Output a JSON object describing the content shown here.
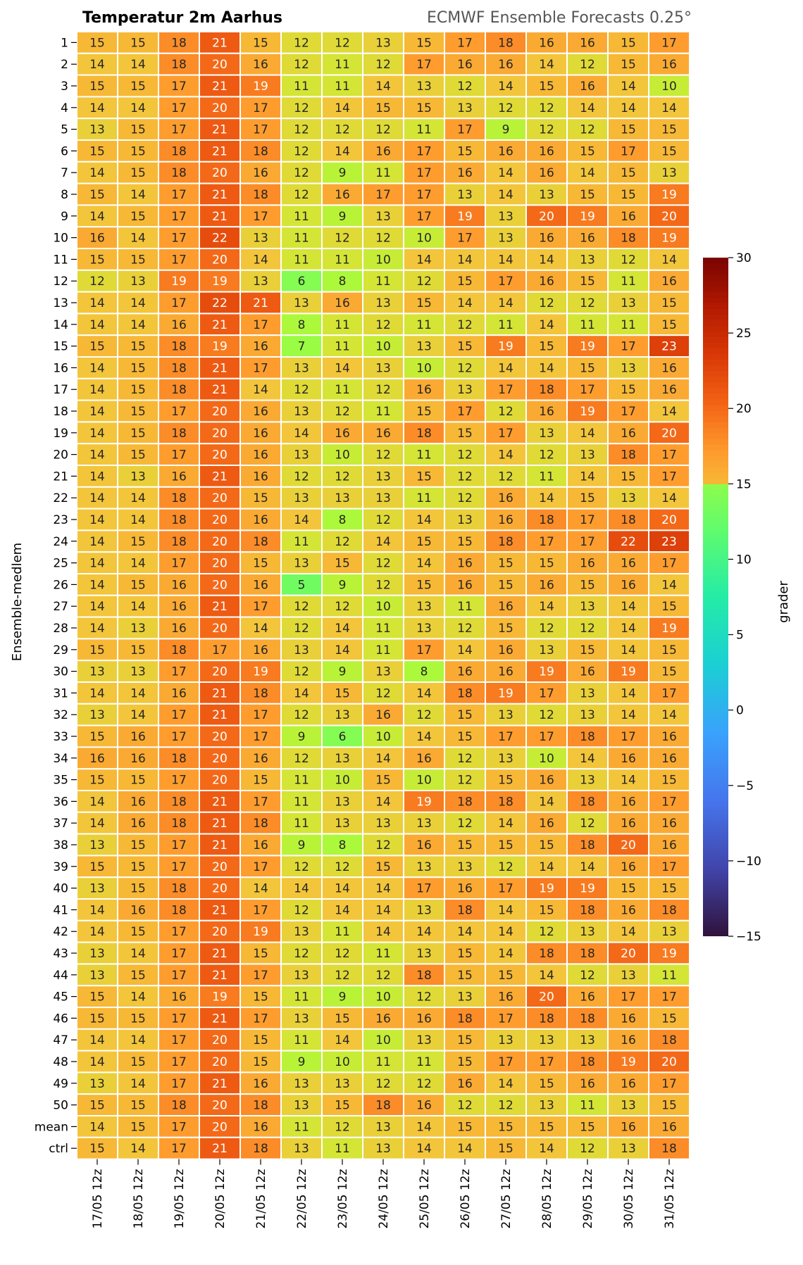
{
  "chart_data": {
    "type": "heatmap",
    "title": "Temperatur 2m Aarhus",
    "subtitle": "ECMWF Ensemble Forecasts 0.25°",
    "ylabel": "Ensemble-medlem",
    "colorbar_label": "grader",
    "vmin": -15,
    "vmax": 30,
    "colorbar_ticks": [
      30,
      25,
      20,
      15,
      10,
      5,
      0,
      -5,
      -10,
      -15
    ],
    "colorbar_tick_labels": [
      "30",
      "25",
      "20",
      "15",
      "10",
      "5",
      "0",
      "−5",
      "−10",
      "−15"
    ],
    "x_labels": [
      "17/05 12z",
      "18/05 12z",
      "19/05 12z",
      "20/05 12z",
      "21/05 12z",
      "22/05 12z",
      "23/05 12z",
      "24/05 12z",
      "25/05 12z",
      "26/05 12z",
      "27/05 12z",
      "28/05 12z",
      "29/05 12z",
      "30/05 12z",
      "31/05 12z"
    ],
    "y_labels": [
      "1",
      "2",
      "3",
      "4",
      "5",
      "6",
      "7",
      "8",
      "9",
      "10",
      "11",
      "12",
      "13",
      "14",
      "15",
      "16",
      "17",
      "18",
      "19",
      "20",
      "21",
      "22",
      "23",
      "24",
      "25",
      "26",
      "27",
      "28",
      "29",
      "30",
      "31",
      "32",
      "33",
      "34",
      "35",
      "36",
      "37",
      "38",
      "39",
      "40",
      "41",
      "42",
      "43",
      "44",
      "45",
      "46",
      "47",
      "48",
      "49",
      "50",
      "mean",
      "ctrl"
    ],
    "values": [
      [
        15,
        15,
        18,
        21,
        15,
        12,
        12,
        13,
        15,
        17,
        18,
        16,
        16,
        15,
        17
      ],
      [
        14,
        14,
        18,
        20,
        16,
        12,
        11,
        12,
        17,
        16,
        16,
        14,
        12,
        15,
        16
      ],
      [
        15,
        15,
        17,
        21,
        19,
        11,
        11,
        14,
        13,
        12,
        14,
        15,
        16,
        14,
        10
      ],
      [
        14,
        14,
        17,
        20,
        17,
        12,
        14,
        15,
        15,
        13,
        12,
        12,
        14,
        14,
        14
      ],
      [
        13,
        15,
        17,
        21,
        17,
        12,
        12,
        12,
        11,
        17,
        9,
        12,
        12,
        15,
        15
      ],
      [
        15,
        15,
        18,
        21,
        18,
        12,
        14,
        16,
        17,
        15,
        16,
        16,
        15,
        17,
        15
      ],
      [
        14,
        15,
        18,
        20,
        16,
        12,
        9,
        11,
        17,
        16,
        14,
        16,
        14,
        15,
        13
      ],
      [
        15,
        14,
        17,
        21,
        18,
        12,
        16,
        17,
        17,
        13,
        14,
        13,
        15,
        15,
        19
      ],
      [
        14,
        15,
        17,
        21,
        17,
        11,
        9,
        13,
        17,
        19,
        13,
        20,
        19,
        16,
        20
      ],
      [
        16,
        14,
        17,
        22,
        13,
        11,
        12,
        12,
        10,
        17,
        13,
        16,
        16,
        18,
        19
      ],
      [
        15,
        15,
        17,
        20,
        14,
        11,
        11,
        10,
        14,
        14,
        14,
        14,
        13,
        12,
        14
      ],
      [
        12,
        13,
        19,
        19,
        13,
        6,
        8,
        11,
        12,
        15,
        17,
        16,
        15,
        11,
        16
      ],
      [
        14,
        14,
        17,
        22,
        21,
        13,
        16,
        13,
        15,
        14,
        14,
        12,
        12,
        13,
        15
      ],
      [
        14,
        14,
        16,
        21,
        17,
        8,
        11,
        12,
        11,
        12,
        11,
        14,
        11,
        11,
        15
      ],
      [
        15,
        15,
        18,
        19,
        16,
        7,
        11,
        10,
        13,
        15,
        19,
        15,
        19,
        17,
        23
      ],
      [
        14,
        15,
        18,
        21,
        17,
        13,
        14,
        13,
        10,
        12,
        14,
        14,
        15,
        13,
        16
      ],
      [
        14,
        15,
        18,
        21,
        14,
        12,
        11,
        12,
        16,
        13,
        17,
        18,
        17,
        15,
        16
      ],
      [
        14,
        15,
        17,
        20,
        16,
        13,
        12,
        11,
        15,
        17,
        12,
        16,
        19,
        17,
        14
      ],
      [
        14,
        15,
        18,
        20,
        16,
        14,
        16,
        16,
        18,
        15,
        17,
        13,
        14,
        16,
        20
      ],
      [
        14,
        15,
        17,
        20,
        16,
        13,
        10,
        12,
        11,
        12,
        14,
        12,
        13,
        18,
        17
      ],
      [
        14,
        13,
        16,
        21,
        16,
        12,
        12,
        13,
        15,
        12,
        12,
        11,
        14,
        15,
        17
      ],
      [
        14,
        14,
        18,
        20,
        15,
        13,
        13,
        13,
        11,
        12,
        16,
        14,
        15,
        13,
        14
      ],
      [
        14,
        14,
        18,
        20,
        16,
        14,
        8,
        12,
        14,
        13,
        16,
        18,
        17,
        18,
        20
      ],
      [
        14,
        15,
        18,
        20,
        18,
        11,
        12,
        14,
        15,
        15,
        18,
        17,
        17,
        22,
        23
      ],
      [
        14,
        14,
        17,
        20,
        15,
        13,
        15,
        12,
        14,
        16,
        15,
        15,
        16,
        16,
        17
      ],
      [
        14,
        15,
        16,
        20,
        16,
        5,
        9,
        12,
        15,
        16,
        15,
        16,
        15,
        16,
        14
      ],
      [
        14,
        14,
        16,
        21,
        17,
        12,
        12,
        10,
        13,
        11,
        16,
        14,
        13,
        14,
        15
      ],
      [
        14,
        13,
        16,
        20,
        14,
        12,
        14,
        11,
        13,
        12,
        15,
        12,
        12,
        14,
        19
      ],
      [
        15,
        15,
        18,
        17,
        16,
        13,
        14,
        11,
        17,
        14,
        16,
        13,
        15,
        14,
        15
      ],
      [
        13,
        13,
        17,
        20,
        19,
        12,
        9,
        13,
        8,
        16,
        16,
        19,
        16,
        19,
        15
      ],
      [
        14,
        14,
        16,
        21,
        18,
        14,
        15,
        12,
        14,
        18,
        19,
        17,
        13,
        14,
        17
      ],
      [
        13,
        14,
        17,
        21,
        17,
        12,
        13,
        16,
        12,
        15,
        13,
        12,
        13,
        14,
        14
      ],
      [
        15,
        16,
        17,
        20,
        17,
        9,
        6,
        10,
        14,
        15,
        17,
        17,
        18,
        17,
        16
      ],
      [
        16,
        16,
        18,
        20,
        16,
        12,
        13,
        14,
        16,
        12,
        13,
        10,
        14,
        16,
        16
      ],
      [
        15,
        15,
        17,
        20,
        15,
        11,
        10,
        15,
        10,
        12,
        15,
        16,
        13,
        14,
        15
      ],
      [
        14,
        16,
        18,
        21,
        17,
        11,
        13,
        14,
        19,
        18,
        18,
        14,
        18,
        16,
        17
      ],
      [
        14,
        16,
        18,
        21,
        18,
        11,
        13,
        13,
        13,
        12,
        14,
        16,
        12,
        16,
        16
      ],
      [
        13,
        15,
        17,
        21,
        16,
        9,
        8,
        12,
        16,
        15,
        15,
        15,
        18,
        20,
        16
      ],
      [
        15,
        15,
        17,
        20,
        17,
        12,
        12,
        15,
        13,
        13,
        12,
        14,
        14,
        16,
        17
      ],
      [
        13,
        15,
        18,
        20,
        14,
        14,
        14,
        14,
        17,
        16,
        17,
        19,
        19,
        15,
        15
      ],
      [
        14,
        16,
        18,
        21,
        17,
        12,
        14,
        14,
        13,
        18,
        14,
        15,
        18,
        16,
        18
      ],
      [
        14,
        15,
        17,
        20,
        19,
        13,
        11,
        14,
        14,
        14,
        14,
        12,
        13,
        14,
        13
      ],
      [
        13,
        14,
        17,
        21,
        15,
        12,
        12,
        11,
        13,
        15,
        14,
        18,
        18,
        20,
        19
      ],
      [
        13,
        15,
        17,
        21,
        17,
        13,
        12,
        12,
        18,
        15,
        15,
        14,
        12,
        13,
        11
      ],
      [
        15,
        14,
        16,
        19,
        15,
        11,
        9,
        10,
        12,
        13,
        16,
        20,
        16,
        17,
        17
      ],
      [
        15,
        15,
        17,
        21,
        17,
        13,
        15,
        16,
        16,
        18,
        17,
        18,
        18,
        16,
        15
      ],
      [
        14,
        14,
        17,
        20,
        15,
        11,
        14,
        10,
        13,
        15,
        13,
        13,
        13,
        16,
        18
      ],
      [
        14,
        15,
        17,
        20,
        15,
        9,
        10,
        11,
        11,
        15,
        17,
        17,
        18,
        19,
        20
      ],
      [
        13,
        14,
        17,
        21,
        16,
        13,
        13,
        12,
        12,
        16,
        14,
        15,
        16,
        16,
        17
      ],
      [
        15,
        15,
        18,
        20,
        18,
        13,
        15,
        18,
        16,
        12,
        12,
        13,
        11,
        13,
        15
      ],
      [
        14,
        15,
        17,
        20,
        16,
        11,
        12,
        13,
        14,
        15,
        15,
        15,
        15,
        16,
        16
      ],
      [
        15,
        14,
        17,
        21,
        18,
        13,
        11,
        13,
        14,
        14,
        15,
        14,
        12,
        13,
        18
      ]
    ]
  }
}
